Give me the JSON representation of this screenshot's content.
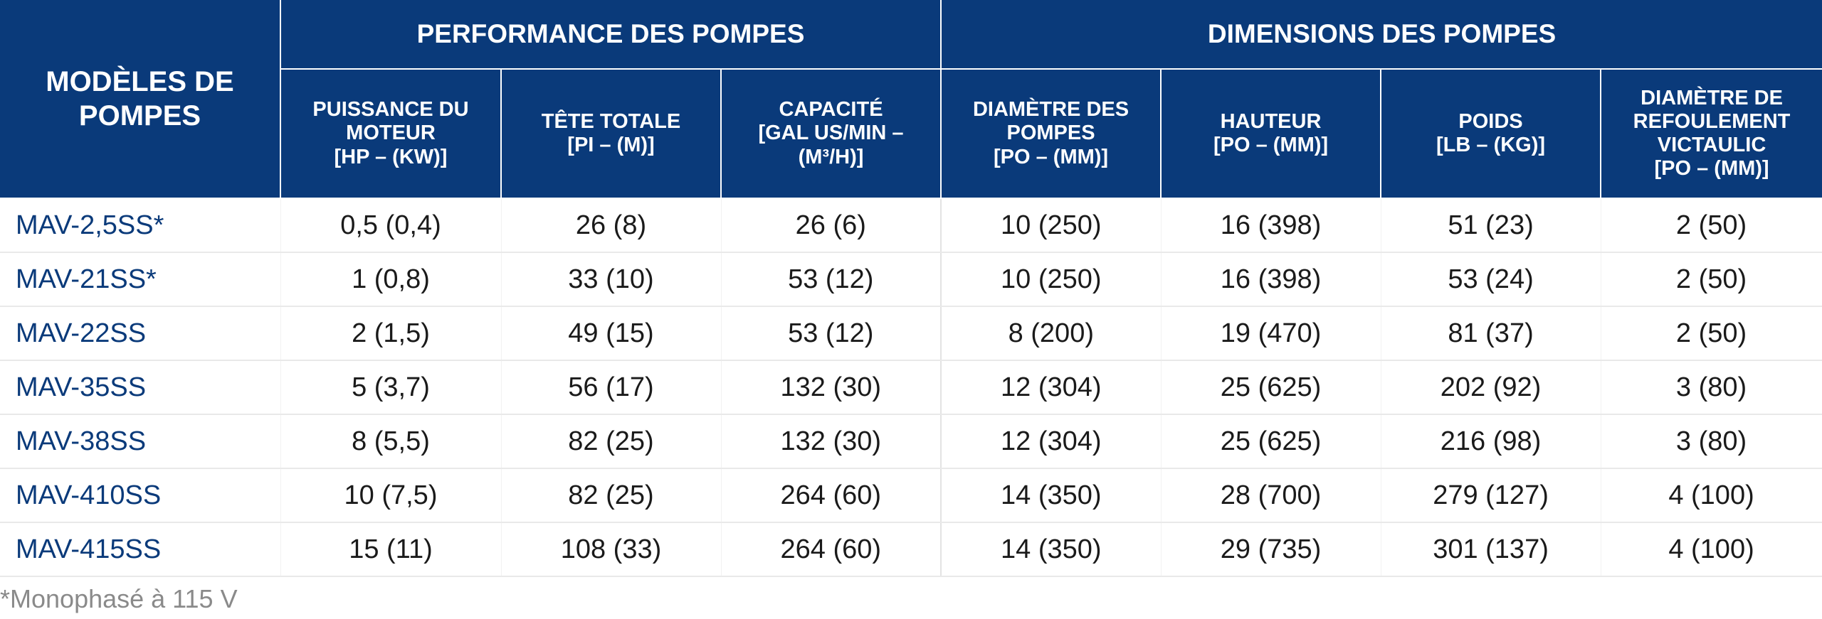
{
  "header": {
    "model_label": "MODÈLES DE POMPES",
    "group_performance": "PERFORMANCE DES POMPES",
    "group_dimensions": "DIMENSIONS DES POMPES",
    "columns": [
      "PUISSANCE DU MOTEUR\n[HP – (KW)]",
      "TÊTE TOTALE\n[PI – (M)]",
      "CAPACITÉ\n[GAL US/MIN –\n(M³/H)]",
      "DIAMÈTRE DES POMPES\n[PO – (MM)]",
      "HAUTEUR\n[PO – (MM)]",
      "POIDS\n[LB – (KG)]",
      "DIAMÈTRE DE REFOULEMENT VICTAULIC\n[PO – (MM)]"
    ]
  },
  "rows": [
    {
      "model": "MAV-2,5SS*",
      "cells": [
        "0,5 (0,4)",
        "26 (8)",
        "26 (6)",
        "10 (250)",
        "16 (398)",
        "51 (23)",
        "2 (50)"
      ]
    },
    {
      "model": "MAV-21SS*",
      "cells": [
        "1 (0,8)",
        "33 (10)",
        "53 (12)",
        "10 (250)",
        "16 (398)",
        "53 (24)",
        "2 (50)"
      ]
    },
    {
      "model": "MAV-22SS",
      "cells": [
        "2 (1,5)",
        "49 (15)",
        "53 (12)",
        "8 (200)",
        "19 (470)",
        "81 (37)",
        "2 (50)"
      ]
    },
    {
      "model": "MAV-35SS",
      "cells": [
        "5 (3,7)",
        "56 (17)",
        "132 (30)",
        "12 (304)",
        "25 (625)",
        "202 (92)",
        "3 (80)"
      ]
    },
    {
      "model": "MAV-38SS",
      "cells": [
        "8 (5,5)",
        "82 (25)",
        "132 (30)",
        "12 (304)",
        "25 (625)",
        "216 (98)",
        "3 (80)"
      ]
    },
    {
      "model": "MAV-410SS",
      "cells": [
        "10 (7,5)",
        "82 (25)",
        "264 (60)",
        "14 (350)",
        "28 (700)",
        "279 (127)",
        "4 (100)"
      ]
    },
    {
      "model": "MAV-415SS",
      "cells": [
        "15 (11)",
        "108 (33)",
        "264 (60)",
        "14 (350)",
        "29 (735)",
        "301 (137)",
        "4 (100)"
      ]
    }
  ],
  "footnote": "*Monophasé à 115 V",
  "colors": {
    "header_bg": "#0a3a7a",
    "model_text": "#0a3a7a"
  }
}
